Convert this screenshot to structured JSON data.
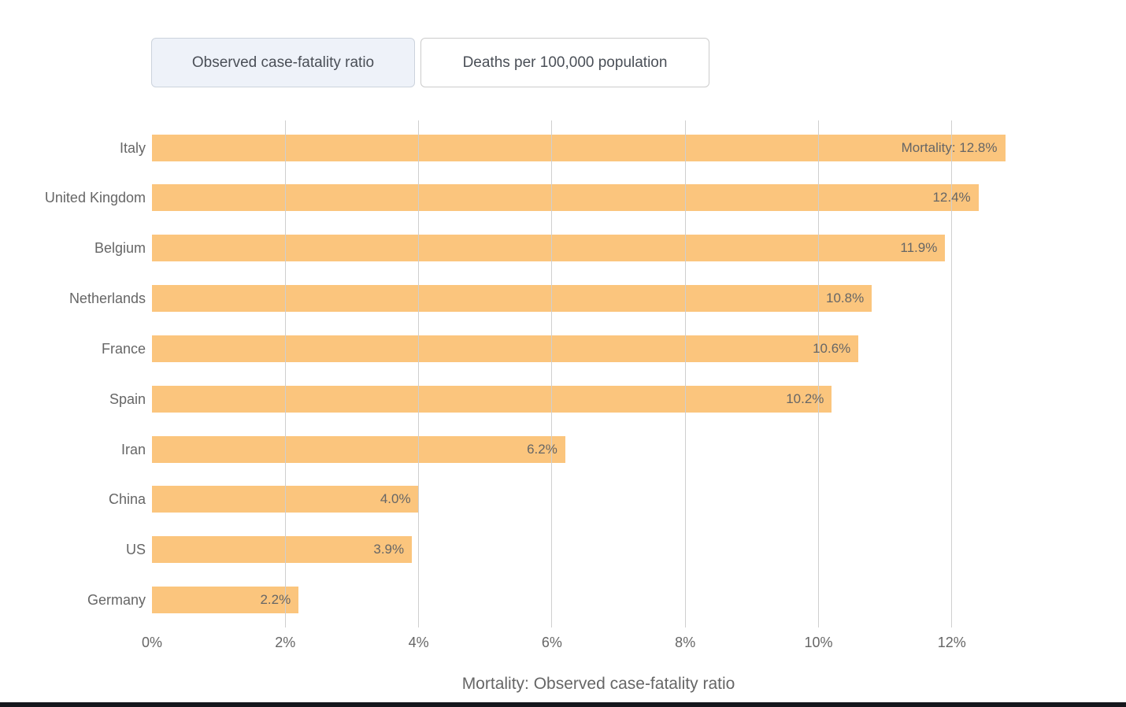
{
  "tabs": [
    {
      "label": "Observed case-fatality ratio",
      "selected": true
    },
    {
      "label": "Deaths per 100,000 population",
      "selected": false
    }
  ],
  "chart_data": {
    "type": "bar",
    "orientation": "horizontal",
    "xlabel": "Mortality: Observed case-fatality ratio",
    "categories": [
      "Italy",
      "United Kingdom",
      "Belgium",
      "Netherlands",
      "France",
      "Spain",
      "Iran",
      "China",
      "US",
      "Germany"
    ],
    "values": [
      12.8,
      12.4,
      11.9,
      10.8,
      10.6,
      10.2,
      6.2,
      4.0,
      3.9,
      2.2
    ],
    "value_labels": [
      "Mortality: 12.8%",
      "12.4%",
      "11.9%",
      "10.8%",
      "10.6%",
      "10.2%",
      "6.2%",
      "4.0%",
      "3.9%",
      "2.2%"
    ],
    "x_ticks": [
      "0%",
      "2%",
      "4%",
      "6%",
      "8%",
      "10%",
      "12%"
    ],
    "x_tick_values": [
      0,
      2,
      4,
      6,
      8,
      10,
      12
    ],
    "xlim": [
      0,
      14.6
    ],
    "grid": true,
    "legend": "none",
    "bar_color": "#fbc57d"
  },
  "colors": {
    "bar": "#fbc57d",
    "gridline": "#cfcfcf",
    "axis_text": "#666666",
    "tab_selected_bg": "#eef2f9",
    "tab_border": "#cccccc",
    "footer_bar": "#15171c"
  }
}
